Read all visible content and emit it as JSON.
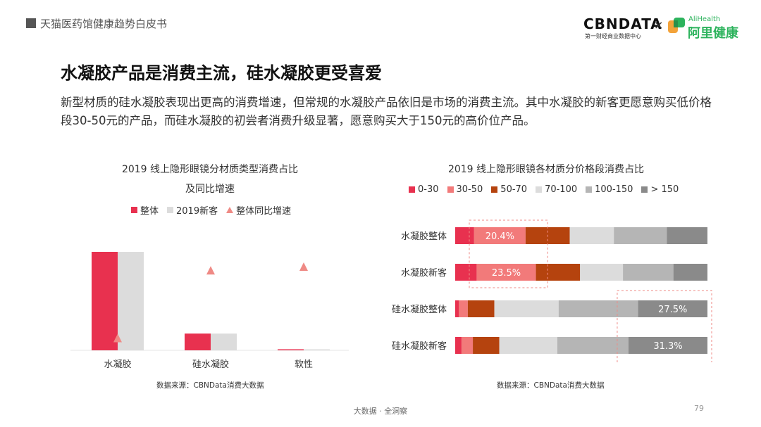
{
  "header": {
    "report": "天猫医药馆健康趋势白皮书",
    "logo_cbn": "CBNDATA",
    "logo_cbn_sub": "第一财经商业数据中心",
    "logo_x": "×",
    "logo_ali_en": "AliHealth",
    "logo_ali_cn": "阿里健康"
  },
  "title": "水凝胶产品是消费主流，硅水凝胶更受喜爱",
  "description": "新型材质的硅水凝胶表现出更高的消费增速，但常规的水凝胶产品依旧是市场的消费主流。其中水凝胶的新客更愿意购买低价格段30-50元的产品，而硅水凝胶的初尝者消费升级显著，愿意购买大于150元的高价位产品。",
  "colors": {
    "overall": "#e8314f",
    "new": "#dcdcdc",
    "growth": "#ef8a85",
    "p0_30": "#e8314f",
    "p30_50": "#f27a7a",
    "p50_70": "#b5430e",
    "p70_100": "#dcdcdc",
    "p100_150": "#b5b5b5",
    "p150": "#8a8a8a"
  },
  "chart_data": [
    {
      "type": "bar",
      "title_line1": "2019 线上隐形眼镜分材质类型消费占比",
      "title_line2": "及同比增速",
      "categories": [
        "水凝胶",
        "硅水凝胶",
        "软性"
      ],
      "series": [
        {
          "name": "整体",
          "values": [
            100,
            17,
            1
          ]
        },
        {
          "name": "2019新客",
          "values": [
            100,
            17,
            1
          ]
        }
      ],
      "growth": {
        "name": "整体同比增速",
        "values": [
          10,
          65,
          68
        ]
      },
      "source": "数据来源：CBNData消费大数据"
    },
    {
      "type": "bar",
      "stacked": true,
      "orientation": "horizontal",
      "title": "2019 线上隐形眼镜各材质分价格段消费占比",
      "categories": [
        "水凝胶整体",
        "水凝胶新客",
        "硅水凝胶整体",
        "硅水凝胶新客"
      ],
      "series": [
        {
          "name": "0-30",
          "values": [
            7.5,
            8.5,
            1.5,
            2.5
          ]
        },
        {
          "name": "30-50",
          "values": [
            20.4,
            23.5,
            3.5,
            4.5
          ]
        },
        {
          "name": "50-70",
          "values": [
            17.5,
            17.5,
            10.5,
            10.5
          ]
        },
        {
          "name": "70-100",
          "values": [
            17.5,
            17.0,
            25.5,
            23.0
          ]
        },
        {
          "name": "100-150",
          "values": [
            21.0,
            20.0,
            31.5,
            28.2
          ]
        },
        {
          "name": "> 150",
          "values": [
            16.1,
            13.5,
            27.5,
            31.3
          ]
        }
      ],
      "labels": [
        {
          "row": 0,
          "series": 1,
          "text": "20.4%"
        },
        {
          "row": 1,
          "series": 1,
          "text": "23.5%"
        },
        {
          "row": 2,
          "series": 5,
          "text": "27.5%"
        },
        {
          "row": 3,
          "series": 5,
          "text": "31.3%"
        }
      ],
      "xlim": [
        0,
        100
      ],
      "source": "数据来源：CBNData消费大数据"
    }
  ],
  "footer": {
    "text": "大数据 · 全洞察",
    "page": "79"
  }
}
